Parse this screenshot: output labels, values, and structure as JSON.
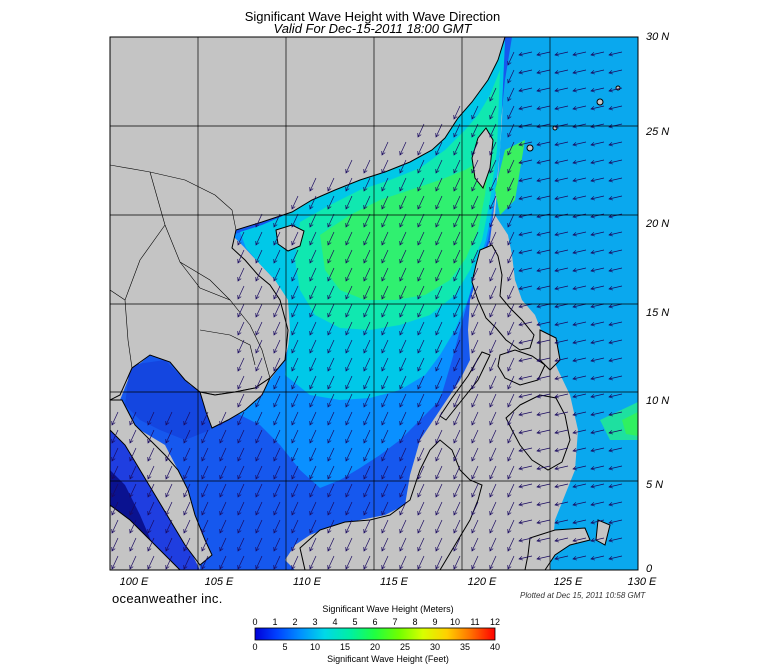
{
  "title": "Significant Wave Height with Wave Direction",
  "subtitle": "Valid For Dec-15-2011 18:00 GMT",
  "brand": "oceanweather inc.",
  "plotted": "Plotted at Dec 15, 2011 10:58 GMT",
  "x_ticks": [
    "100 E",
    "105 E",
    "110 E",
    "115 E",
    "120 E",
    "125 E",
    "130 E"
  ],
  "y_ticks": [
    "30 N",
    "25 N",
    "20 N",
    "15 N",
    "10 N",
    "5 N",
    "0"
  ],
  "colorbar": {
    "title_top": "Significant Wave Height (Meters)",
    "title_bottom": "Significant Wave Height (Feet)",
    "meters": [
      "0",
      "1",
      "2",
      "3",
      "4",
      "5",
      "6",
      "7",
      "8",
      "9",
      "10",
      "11",
      "12"
    ],
    "feet": [
      "0",
      "5",
      "10",
      "15",
      "20",
      "25",
      "30",
      "35",
      "40"
    ]
  },
  "colors": {
    "land": "#c4c4c4",
    "arrow": "#1a0a60",
    "grid": "#000000"
  }
}
